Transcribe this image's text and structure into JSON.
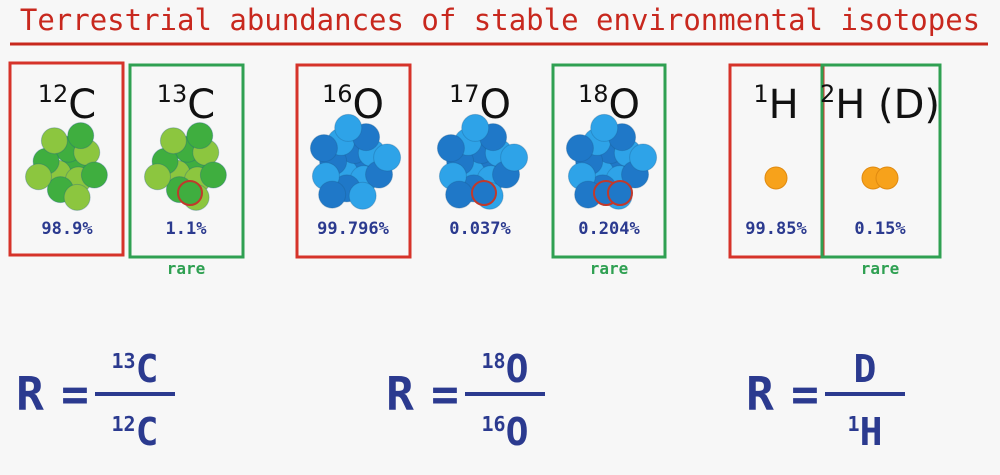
{
  "title": "Terrestrial abundances of stable environmental isotopes",
  "isotopes": [
    {
      "mass": "12",
      "symbol": "C",
      "abundance": "98.9%",
      "frame": "#d6332a"
    },
    {
      "mass": "13",
      "symbol": "C",
      "abundance": "1.1%",
      "frame": "#2fa052",
      "note": "rare"
    },
    {
      "mass": "16",
      "symbol": "O",
      "abundance": "99.796%",
      "frame": "#d6332a"
    },
    {
      "mass": "17",
      "symbol": "O",
      "abundance": "0.037%"
    },
    {
      "mass": "18",
      "symbol": "O",
      "abundance": "0.204%",
      "frame": "#2fa052",
      "note": "rare"
    },
    {
      "mass": "1",
      "symbol": "H",
      "abundance": "99.85%",
      "frame": "#d6332a"
    },
    {
      "mass": "2",
      "symbol": "H (D)",
      "abundance": "0.15%",
      "frame": "#2fa052",
      "note": "rare"
    }
  ],
  "formulas": [
    {
      "lhs": "R",
      "relation": "=",
      "numerator": {
        "mass": "13",
        "symbol": "C"
      },
      "denominator": {
        "mass": "12",
        "symbol": "C"
      }
    },
    {
      "lhs": "R",
      "relation": "=",
      "numerator": {
        "mass": "18",
        "symbol": "O"
      },
      "denominator": {
        "mass": "16",
        "symbol": "O"
      }
    },
    {
      "lhs": "R",
      "relation": "=",
      "numerator": {
        "symbol": "D"
      },
      "denominator": {
        "mass": "1",
        "symbol": "H"
      }
    }
  ]
}
